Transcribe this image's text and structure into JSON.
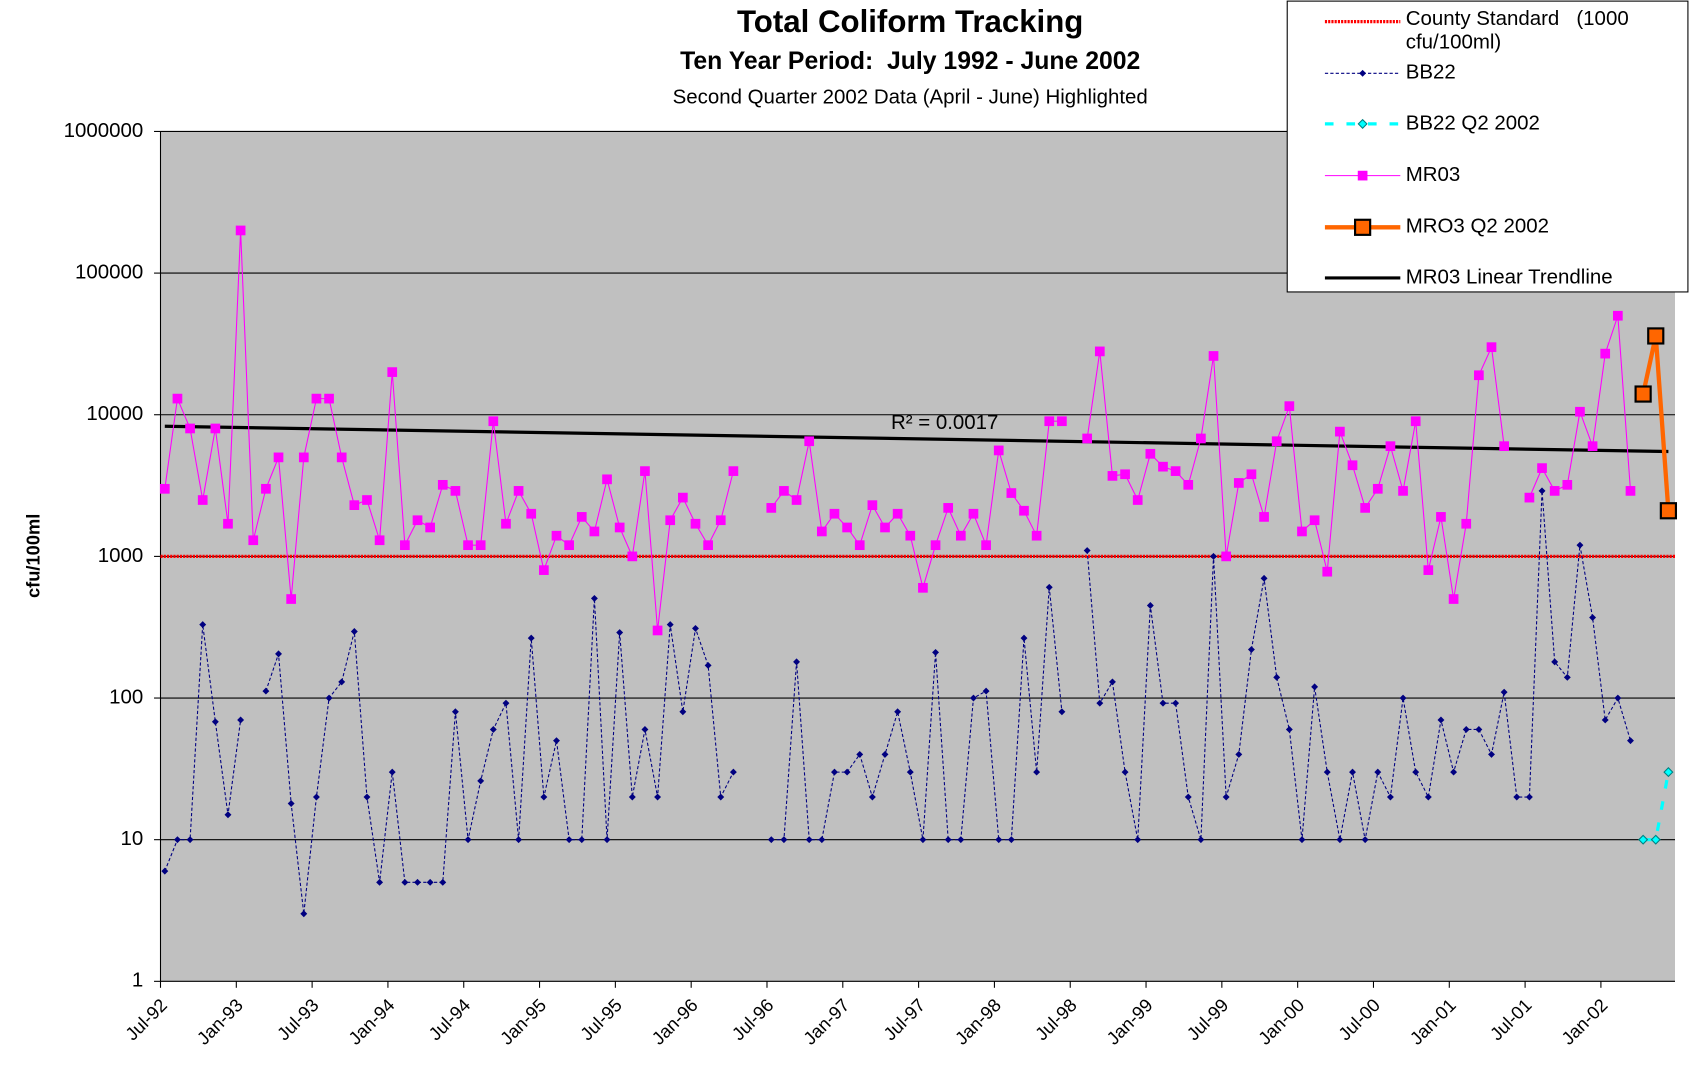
{
  "chart_data": {
    "type": "line",
    "title": "Total Coliform Tracking",
    "subtitle": "Ten Year Period:  July 1992 - June 2002",
    "note": "Second Quarter 2002 Data (April - June) Highlighted",
    "y_label": "cfu/100ml",
    "log_scale": true,
    "grid": true,
    "legend": "top-right",
    "ylim": [
      1,
      1000000
    ],
    "yticks": [
      1,
      10,
      100,
      1000,
      10000,
      100000,
      1000000
    ],
    "categories": [
      "Jul-92",
      null,
      null,
      null,
      null,
      null,
      "Jan-93",
      null,
      null,
      null,
      null,
      null,
      "Jul-93",
      null,
      null,
      null,
      null,
      null,
      "Jan-94",
      null,
      null,
      null,
      null,
      null,
      "Jul-94",
      null,
      null,
      null,
      null,
      null,
      "Jan-95",
      null,
      null,
      null,
      null,
      null,
      "Jul-95",
      null,
      null,
      null,
      null,
      null,
      "Jan-96",
      null,
      null,
      null,
      null,
      null,
      "Jul-96",
      null,
      null,
      null,
      null,
      null,
      "Jan-97",
      null,
      null,
      null,
      null,
      null,
      "Jul-97",
      null,
      null,
      null,
      null,
      null,
      "Jan-98",
      null,
      null,
      null,
      null,
      null,
      "Jul-98",
      null,
      null,
      null,
      null,
      null,
      "Jan-99",
      null,
      null,
      null,
      null,
      null,
      "Jul-99",
      null,
      null,
      null,
      null,
      null,
      "Jan-00",
      null,
      null,
      null,
      null,
      null,
      "Jul-00",
      null,
      null,
      null,
      null,
      null,
      "Jan-01",
      null,
      null,
      null,
      null,
      null,
      "Jul-01",
      null,
      null,
      null,
      null,
      null,
      "Jan-02",
      null,
      null,
      null,
      null,
      null
    ],
    "reference_line": {
      "name": "County Standard   (1000 cfu/100ml)",
      "value": 1000,
      "color": "#ff0000"
    },
    "series": [
      {
        "name": "BB22",
        "color": "#000080",
        "line_style": "dashed",
        "line_width": 1,
        "marker": "diamond",
        "marker_size": 5,
        "values": [
          6,
          10,
          10,
          330,
          68,
          15,
          70,
          null,
          112,
          205,
          18,
          3,
          20,
          100,
          130,
          295,
          20,
          5,
          30,
          5,
          5,
          5,
          5,
          80,
          10,
          26,
          60,
          92,
          10,
          265,
          20,
          50,
          10,
          10,
          505,
          10,
          290,
          20,
          60,
          20,
          330,
          80,
          310,
          170,
          20,
          30,
          null,
          null,
          10,
          10,
          180,
          10,
          10,
          30,
          30,
          40,
          20,
          40,
          80,
          30,
          10,
          210,
          10,
          10,
          100,
          112,
          10,
          10,
          265,
          30,
          605,
          80,
          null,
          1100,
          92,
          130,
          30,
          10,
          450,
          92,
          92,
          20,
          10,
          1000,
          20,
          40,
          220,
          700,
          140,
          60,
          10,
          120,
          30,
          10,
          30,
          10,
          30,
          20,
          100,
          30,
          20,
          70,
          30,
          60,
          60,
          40,
          110,
          20,
          20,
          2900,
          180,
          140,
          1200,
          370,
          70,
          100,
          50,
          null,
          null,
          null
        ]
      },
      {
        "name": "BB22 Q2 2002",
        "color": "#00ffff",
        "line_style": "dashed",
        "line_width": 3,
        "marker": "diamond",
        "marker_size": 8,
        "values": [
          null,
          null,
          null,
          null,
          null,
          null,
          null,
          null,
          null,
          null,
          null,
          null,
          null,
          null,
          null,
          null,
          null,
          null,
          null,
          null,
          null,
          null,
          null,
          null,
          null,
          null,
          null,
          null,
          null,
          null,
          null,
          null,
          null,
          null,
          null,
          null,
          null,
          null,
          null,
          null,
          null,
          null,
          null,
          null,
          null,
          null,
          null,
          null,
          null,
          null,
          null,
          null,
          null,
          null,
          null,
          null,
          null,
          null,
          null,
          null,
          null,
          null,
          null,
          null,
          null,
          null,
          null,
          null,
          null,
          null,
          null,
          null,
          null,
          null,
          null,
          null,
          null,
          null,
          null,
          null,
          null,
          null,
          null,
          null,
          null,
          null,
          null,
          null,
          null,
          null,
          null,
          null,
          null,
          null,
          null,
          null,
          null,
          null,
          null,
          null,
          null,
          null,
          null,
          null,
          null,
          null,
          null,
          null,
          null,
          null,
          null,
          null,
          null,
          null,
          null,
          null,
          null,
          10,
          10,
          30
        ]
      },
      {
        "name": "MR03",
        "color": "#ff00ff",
        "line_style": "solid",
        "line_width": 1,
        "marker": "square",
        "marker_size": 8,
        "values": [
          3000,
          13000,
          8000,
          2500,
          8000,
          1700,
          200000,
          1300,
          3000,
          5000,
          500,
          5000,
          13000,
          13000,
          5000,
          2300,
          2500,
          1300,
          20000,
          1200,
          1800,
          1600,
          3200,
          2900,
          1200,
          1200,
          9000,
          1700,
          2900,
          2000,
          800,
          1400,
          1200,
          1900,
          1500,
          3500,
          1600,
          1000,
          4000,
          300,
          1800,
          2600,
          1700,
          1200,
          1800,
          4000,
          null,
          null,
          2200,
          2900,
          2500,
          6500,
          1500,
          2000,
          1600,
          1200,
          2300,
          1600,
          2000,
          1400,
          600,
          1200,
          2200,
          1400,
          2000,
          1200,
          5600,
          2800,
          2100,
          1400,
          9000,
          9000,
          null,
          6800,
          28000,
          3700,
          3800,
          2500,
          5300,
          4300,
          4000,
          3200,
          6800,
          26000,
          1000,
          3300,
          3800,
          1900,
          6500,
          11500,
          1500,
          1800,
          780,
          7600,
          4400,
          2200,
          3000,
          6000,
          2900,
          9000,
          800,
          1900,
          500,
          1700,
          19000,
          30000,
          6000,
          null,
          2600,
          4200,
          2900,
          3200,
          10500,
          6000,
          27000,
          50000,
          2900,
          null,
          null,
          null
        ]
      },
      {
        "name": "MRO3 Q2 2002",
        "color": "#ff6600",
        "line_style": "solid",
        "line_width": 4,
        "marker": "square",
        "marker_size": 14,
        "values": [
          null,
          null,
          null,
          null,
          null,
          null,
          null,
          null,
          null,
          null,
          null,
          null,
          null,
          null,
          null,
          null,
          null,
          null,
          null,
          null,
          null,
          null,
          null,
          null,
          null,
          null,
          null,
          null,
          null,
          null,
          null,
          null,
          null,
          null,
          null,
          null,
          null,
          null,
          null,
          null,
          null,
          null,
          null,
          null,
          null,
          null,
          null,
          null,
          null,
          null,
          null,
          null,
          null,
          null,
          null,
          null,
          null,
          null,
          null,
          null,
          null,
          null,
          null,
          null,
          null,
          null,
          null,
          null,
          null,
          null,
          null,
          null,
          null,
          null,
          null,
          null,
          null,
          null,
          null,
          null,
          null,
          null,
          null,
          null,
          null,
          null,
          null,
          null,
          null,
          null,
          null,
          null,
          null,
          null,
          null,
          null,
          null,
          null,
          null,
          null,
          null,
          null,
          null,
          null,
          null,
          null,
          null,
          null,
          null,
          null,
          null,
          null,
          null,
          null,
          null,
          null,
          null,
          14000,
          36000,
          2100
        ]
      }
    ],
    "trendline": {
      "name": "MR03 Linear Trendline",
      "color": "#000000",
      "from": 8300,
      "to": 5500,
      "label": "R² = 0.0017"
    }
  }
}
